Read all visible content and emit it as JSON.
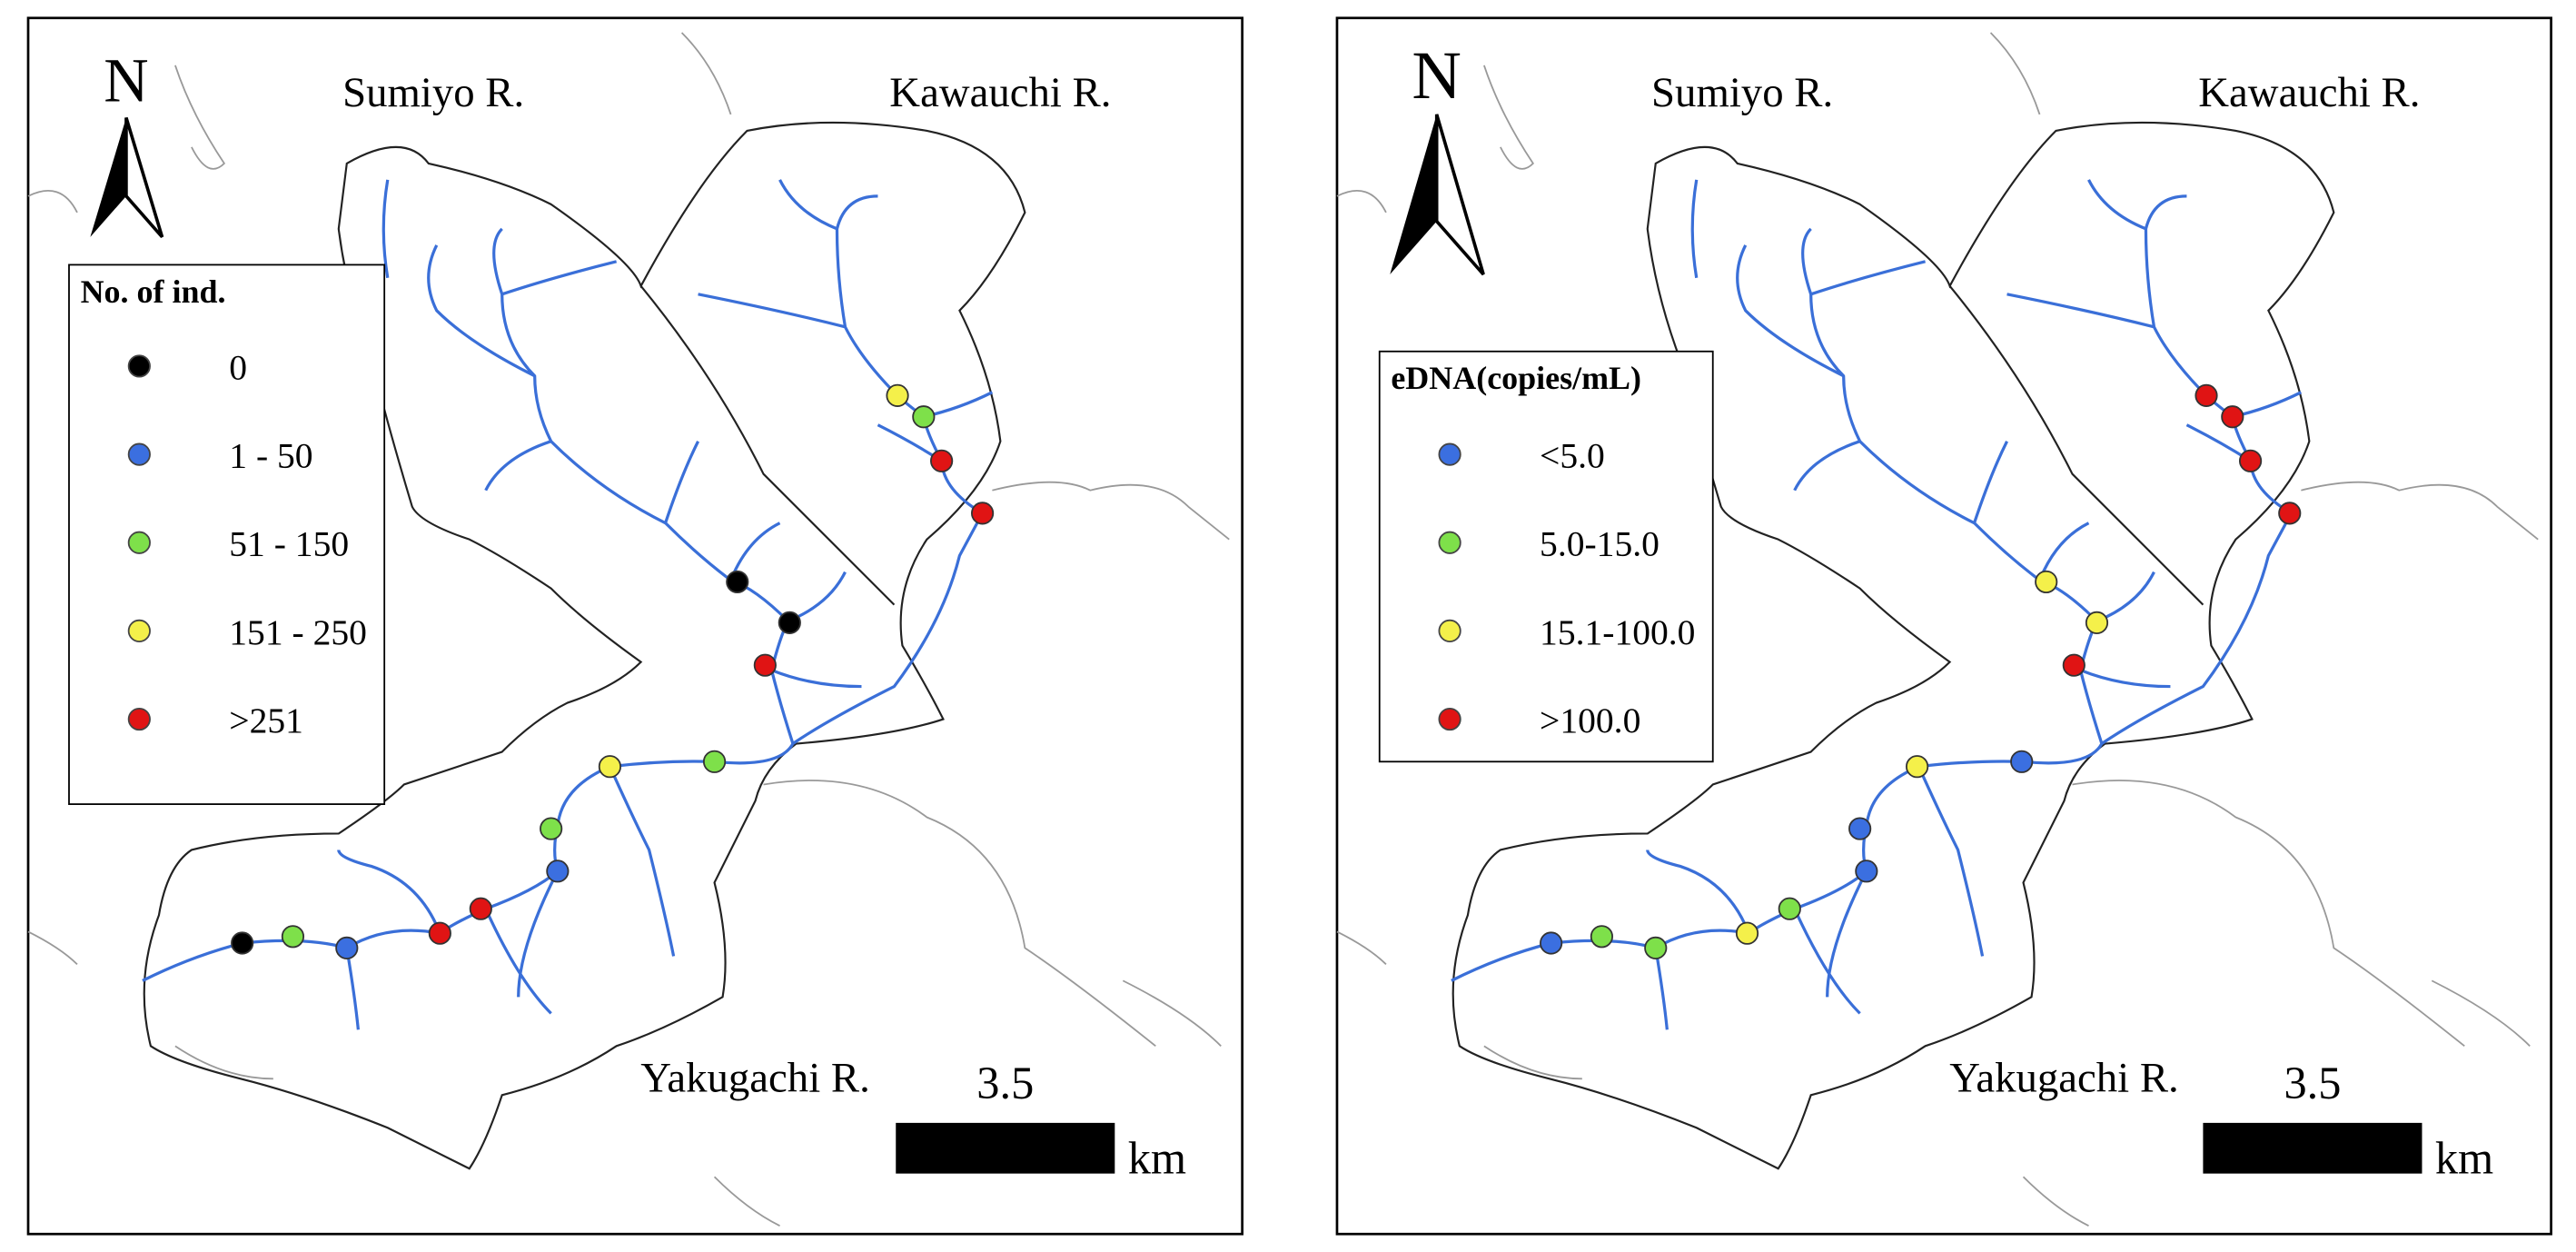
{
  "panels": [
    {
      "north": "N",
      "rivers": [
        "Sumiyo R.",
        "Kawauchi R.",
        "Yakugachi R."
      ],
      "legend": {
        "title": "No. of ind.",
        "items": [
          {
            "label": "0",
            "color": "#000000"
          },
          {
            "label": "1 - 50",
            "color": "#3b6fe0"
          },
          {
            "label": "51 - 150",
            "color": "#7ee04a"
          },
          {
            "label": "151 - 250",
            "color": "#f4f04a"
          },
          {
            "label": ">251",
            "color": "#e01414"
          }
        ]
      },
      "scale": {
        "value": "3.5",
        "unit": "km"
      }
    },
    {
      "north": "N",
      "rivers": [
        "Sumiyo R.",
        "Kawauchi R.",
        "Yakugachi R."
      ],
      "legend": {
        "title": "eDNA(copies/mL)",
        "items": [
          {
            "label": "<5.0",
            "color": "#3b6fe0"
          },
          {
            "label": "5.0-15.0",
            "color": "#7ee04a"
          },
          {
            "label": "15.1-100.0",
            "color": "#f4f04a"
          },
          {
            "label": ">100.0",
            "color": "#e01414"
          }
        ]
      },
      "scale": {
        "value": "3.5",
        "unit": "km"
      }
    }
  ]
}
